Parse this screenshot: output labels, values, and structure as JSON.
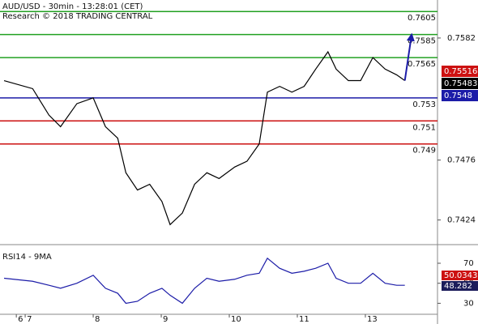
{
  "chart_data": [
    {
      "type": "line",
      "title": "AUD/USD - 30min - 13:28:01 (CET)",
      "subtitle": "Research © 2018 TRADING CENTRAL",
      "xlim": [
        0.63,
        7.06
      ],
      "xticks": [
        {
          "value": 0.87,
          "label": "6"
        },
        {
          "value": 1,
          "label": "7"
        },
        {
          "value": 2,
          "label": "8"
        },
        {
          "value": 3,
          "label": "9"
        },
        {
          "value": 4,
          "label": "10"
        },
        {
          "value": 5,
          "label": "11"
        },
        {
          "value": 6,
          "label": "13"
        }
      ],
      "ylim": [
        0.7404,
        0.7615
      ],
      "yticks": [
        0.7424,
        0.7476,
        0.7582
      ],
      "levels": [
        {
          "value": 0.7605,
          "color": "#22a022"
        },
        {
          "value": 0.7585,
          "color": "#22a022"
        },
        {
          "value": 0.7565,
          "color": "#22a022"
        },
        {
          "value": 0.753,
          "color": "#1c1ca8"
        },
        {
          "value": 0.751,
          "color": "#cc1111"
        },
        {
          "value": 0.749,
          "color": "#cc1111"
        }
      ],
      "price_tags": [
        {
          "value": 0.75516,
          "color": "#cc1111"
        },
        {
          "value": 0.75483,
          "color": "#000000"
        },
        {
          "value": 0.7548,
          "color": "#1c1ca8"
        }
      ],
      "series": [
        {
          "color": "#000000",
          "x": [
            0.69,
            1.11,
            1.35,
            1.52,
            1.76,
            2.0,
            2.18,
            2.36,
            2.48,
            2.65,
            2.83,
            3.01,
            3.13,
            3.31,
            3.49,
            3.67,
            3.85,
            4.08,
            4.26,
            4.44,
            4.56,
            4.74,
            4.92,
            5.1,
            5.27,
            5.45,
            5.57,
            5.75,
            5.93,
            6.11,
            6.29,
            6.46,
            6.58
          ],
          "values": [
            0.7545,
            0.7538,
            0.7515,
            0.7505,
            0.7525,
            0.753,
            0.7505,
            0.7495,
            0.7465,
            0.745,
            0.7455,
            0.744,
            0.742,
            0.743,
            0.7455,
            0.7465,
            0.746,
            0.747,
            0.7475,
            0.749,
            0.7535,
            0.754,
            0.7535,
            0.754,
            0.7555,
            0.757,
            0.7555,
            0.7545,
            0.7545,
            0.7565,
            0.7555,
            0.755,
            0.7545
          ]
        },
        {
          "color": "#1c1ca8",
          "x": [
            6.58,
            6.68
          ],
          "values": [
            0.7545,
            0.7585
          ]
        }
      ]
    },
    {
      "type": "line",
      "title": "RSI14 - 9MA",
      "ylim": [
        19,
        87
      ],
      "yticks": [
        30,
        50,
        70
      ],
      "tags": [
        {
          "value": 50.0343,
          "color": "#cc1111"
        },
        {
          "value": 48.282,
          "color": "#1c1c5a"
        }
      ],
      "series": [
        {
          "color": "#1c1ca8",
          "x": [
            0.69,
            1.11,
            1.35,
            1.52,
            1.76,
            2.0,
            2.18,
            2.36,
            2.48,
            2.65,
            2.83,
            3.01,
            3.13,
            3.31,
            3.49,
            3.67,
            3.85,
            4.08,
            4.26,
            4.44,
            4.56,
            4.74,
            4.92,
            5.1,
            5.27,
            5.45,
            5.57,
            5.75,
            5.93,
            6.11,
            6.29,
            6.46,
            6.58
          ],
          "values": [
            55,
            52,
            48,
            45,
            50,
            58,
            45,
            40,
            30,
            32,
            40,
            45,
            38,
            30,
            45,
            55,
            52,
            54,
            58,
            60,
            75,
            65,
            60,
            62,
            65,
            70,
            55,
            50,
            50,
            60,
            50,
            48,
            48
          ]
        }
      ]
    }
  ]
}
